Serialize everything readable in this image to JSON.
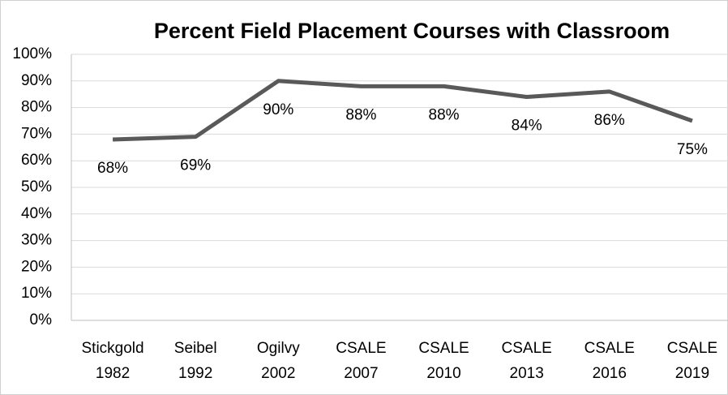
{
  "chart_data": {
    "type": "line",
    "title": "Percent Field Placement Courses with Classroom",
    "categories": [
      [
        "Stickgold",
        "1982"
      ],
      [
        "Seibel",
        "1992"
      ],
      [
        "Ogilvy",
        "2002"
      ],
      [
        "CSALE",
        "2007"
      ],
      [
        "CSALE",
        "2010"
      ],
      [
        "CSALE",
        "2013"
      ],
      [
        "CSALE",
        "2016"
      ],
      [
        "CSALE",
        "2019"
      ]
    ],
    "values": [
      68,
      69,
      90,
      88,
      88,
      84,
      86,
      75
    ],
    "value_labels": [
      "68%",
      "69%",
      "90%",
      "88%",
      "88%",
      "84%",
      "86%",
      "75%"
    ],
    "color": "#595959",
    "ylim": [
      0,
      100
    ],
    "yticks": [
      {
        "value": 0,
        "label": "0%"
      },
      {
        "value": 10,
        "label": "10%"
      },
      {
        "value": 20,
        "label": "20%"
      },
      {
        "value": 30,
        "label": "30%"
      },
      {
        "value": 40,
        "label": "40%"
      },
      {
        "value": 50,
        "label": "50%"
      },
      {
        "value": 60,
        "label": "60%"
      },
      {
        "value": 70,
        "label": "70%"
      },
      {
        "value": 80,
        "label": "80%"
      },
      {
        "value": 90,
        "label": "90%"
      },
      {
        "value": 100,
        "label": "100%"
      }
    ],
    "grid": true
  }
}
